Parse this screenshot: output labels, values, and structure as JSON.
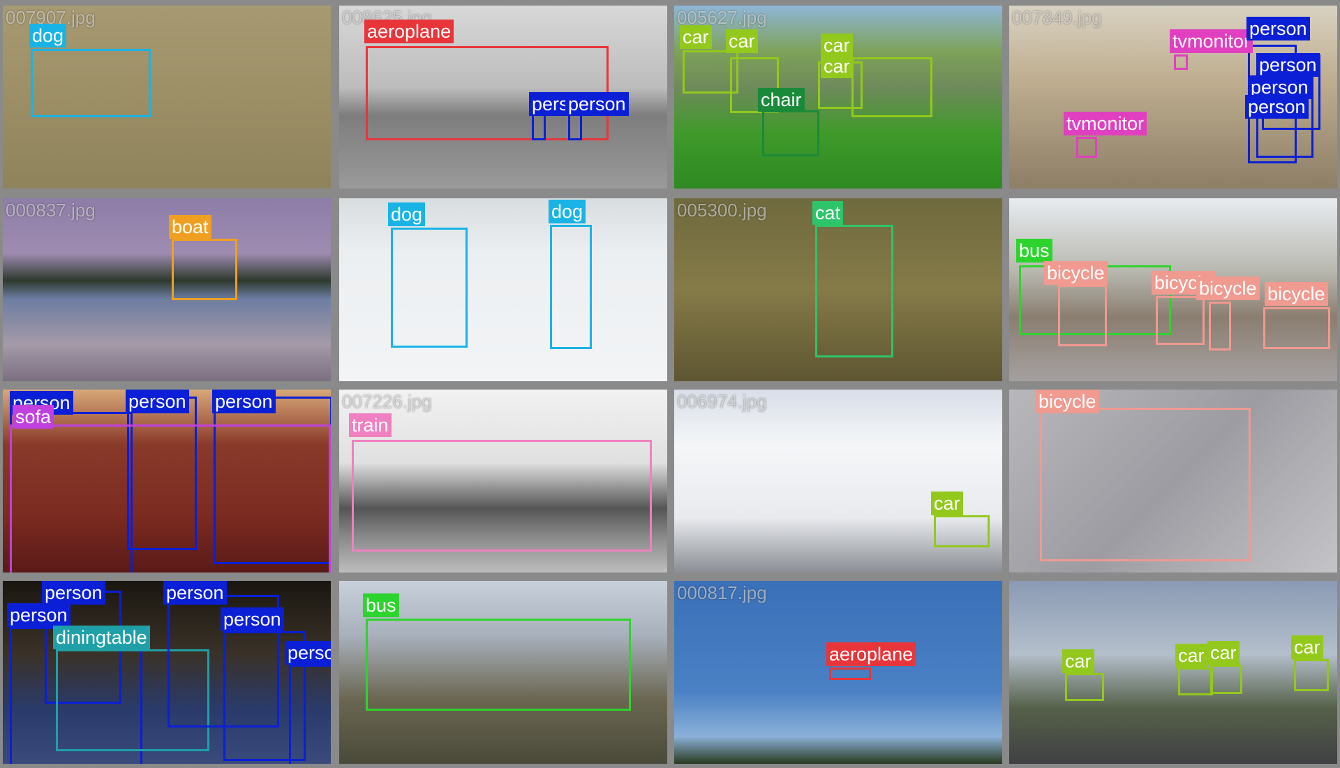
{
  "colors": {
    "person": "#0a1fd6",
    "dog": "#19b3e6",
    "aeroplane": "#e8353a",
    "car": "#93c81d",
    "chair": "#1a8a3a",
    "tvmonitor": "#e040c0",
    "boat": "#f0a020",
    "cat": "#2ec46a",
    "bus": "#2ed42e",
    "bicycle": "#f09a90",
    "sofa": "#c040e0",
    "train": "#f080c0",
    "diningtable": "#1fa0a8"
  },
  "tiles": [
    {
      "file": "007907.jpg",
      "labels": [
        "dog"
      ]
    },
    {
      "file": "008625.jpg",
      "labels": [
        "aeroplane",
        "person",
        "person"
      ]
    },
    {
      "file": "005627.jpg",
      "labels": [
        "car",
        "car",
        "car",
        "car",
        "chair"
      ]
    },
    {
      "file": "007849.jpg",
      "labels": [
        "tvmonitor",
        "person",
        "person",
        "person",
        "person",
        "tvmonitor"
      ]
    },
    {
      "file": "000837.jpg",
      "labels": [
        "boat"
      ]
    },
    {
      "file": "",
      "labels": [
        "dog",
        "dog"
      ]
    },
    {
      "file": "005300.jpg",
      "labels": [
        "cat"
      ]
    },
    {
      "file": "",
      "labels": [
        "bus",
        "bicycle",
        "bicycle",
        "bicycle",
        "bicycle"
      ]
    },
    {
      "file": "",
      "labels": [
        "person",
        "person",
        "person",
        "sofa"
      ]
    },
    {
      "file": "007226.jpg",
      "labels": [
        "train"
      ]
    },
    {
      "file": "006974.jpg",
      "labels": [
        "car"
      ]
    },
    {
      "file": "",
      "labels": [
        "bicycle"
      ]
    },
    {
      "file": "",
      "labels": [
        "person",
        "person",
        "diningtable",
        "person",
        "person",
        "person"
      ]
    },
    {
      "file": "",
      "labels": [
        "bus"
      ]
    },
    {
      "file": "000817.jpg",
      "labels": [
        "aeroplane"
      ]
    },
    {
      "file": "",
      "labels": [
        "car",
        "car",
        "car",
        "car"
      ]
    }
  ]
}
